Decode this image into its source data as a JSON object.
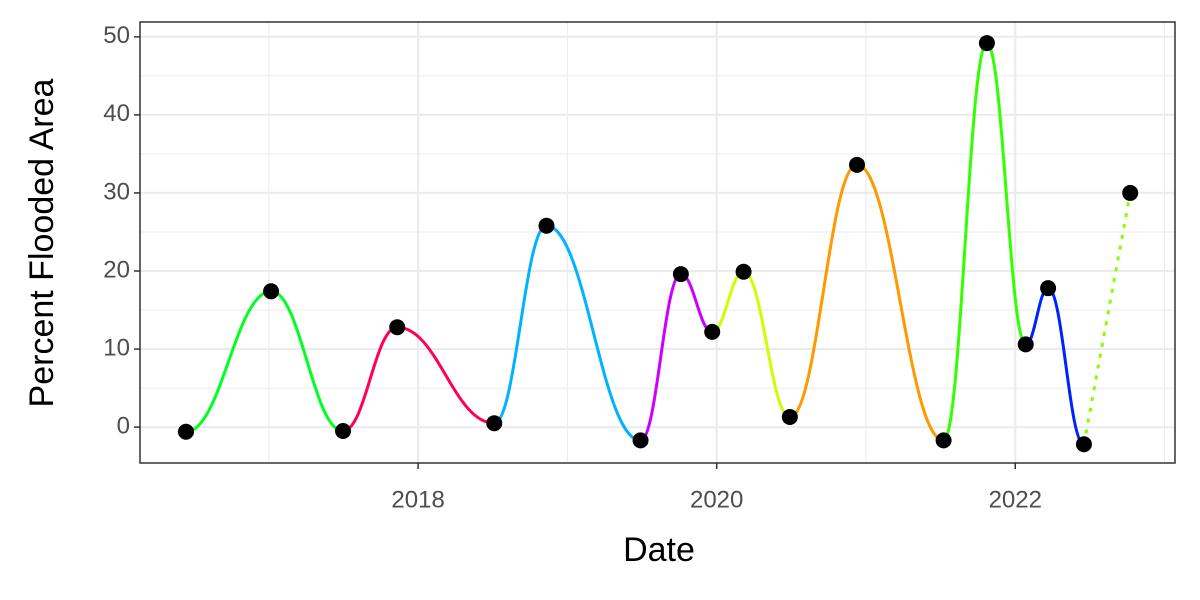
{
  "chart_data": {
    "type": "line",
    "x_label": "Date",
    "y_label": "Percent Flooded Area",
    "x": [
      2016.445,
      2017.015,
      2017.497,
      2017.86,
      2018.51,
      2018.86,
      2019.49,
      2019.76,
      2019.97,
      2020.18,
      2020.49,
      2020.94,
      2021.52,
      2021.81,
      2022.07,
      2022.22,
      2022.46,
      2022.77
    ],
    "values": [
      -0.6,
      17.4,
      -0.5,
      12.8,
      0.5,
      25.8,
      -1.7,
      19.6,
      12.2,
      19.9,
      1.3,
      33.6,
      -1.7,
      49.2,
      10.6,
      17.8,
      -2.2,
      30.0
    ],
    "point_color": "#000000",
    "line_colors": [
      "#00ff22",
      "#00ff22",
      "#ff0055",
      "#ff0055",
      "#00b3ff",
      "#00b3ff",
      "#cc00ff",
      "#cc00ff",
      "#ccff00",
      "#ccff00",
      "#ff9900",
      "#ff9900",
      "#33ff00",
      "#33ff00",
      "#0022ff",
      "#0022ff",
      "#88ff00"
    ],
    "line_styles": [
      "solid",
      "solid",
      "solid",
      "solid",
      "solid",
      "solid",
      "solid",
      "solid",
      "solid",
      "solid",
      "solid",
      "solid",
      "solid",
      "solid",
      "solid",
      "solid",
      "dotted"
    ],
    "xlim": [
      2016.137,
      2023.07
    ],
    "xticks": [
      2018,
      2020,
      2022
    ],
    "ylim": [
      -4.6,
      51.9
    ],
    "yticks": [
      0,
      10,
      20,
      30,
      40,
      50
    ],
    "grid": true
  }
}
